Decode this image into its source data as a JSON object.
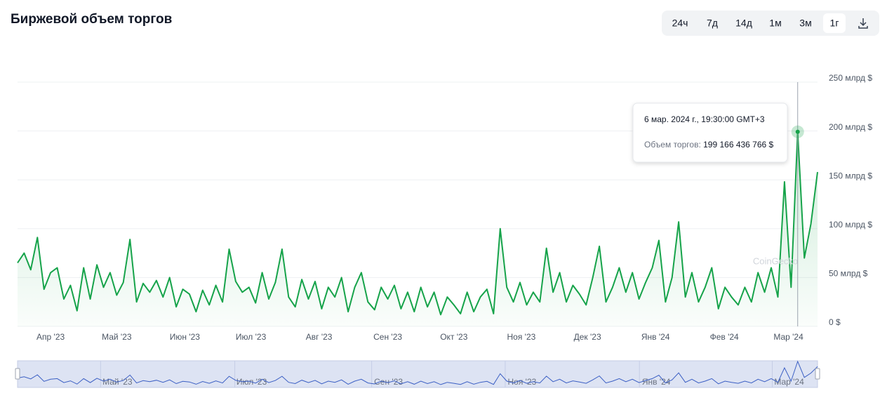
{
  "title": "Биржевой объем торгов",
  "range_buttons": [
    "24ч",
    "7д",
    "14д",
    "1м",
    "3м",
    "1г"
  ],
  "active_range": 5,
  "watermark": "CoinGecko",
  "chart_data": {
    "type": "line",
    "color": "#16a34a",
    "grid": true,
    "values": [
      65,
      75,
      58,
      91,
      38,
      55,
      60,
      28,
      42,
      16,
      60,
      28,
      63,
      40,
      55,
      32,
      45,
      89,
      25,
      44,
      35,
      47,
      30,
      50,
      20,
      38,
      33,
      15,
      37,
      22,
      42,
      25,
      79,
      46,
      35,
      40,
      24,
      55,
      28,
      45,
      79,
      30,
      20,
      48,
      28,
      46,
      18,
      40,
      30,
      50,
      15,
      40,
      55,
      25,
      17,
      40,
      28,
      42,
      18,
      35,
      15,
      40,
      20,
      35,
      12,
      30,
      22,
      13,
      35,
      15,
      30,
      38,
      13,
      100,
      40,
      25,
      45,
      22,
      35,
      25,
      80,
      35,
      55,
      25,
      42,
      33,
      22,
      50,
      82,
      25,
      40,
      60,
      35,
      55,
      28,
      45,
      60,
      88,
      25,
      50,
      107,
      30,
      55,
      25,
      40,
      60,
      18,
      40,
      30,
      22,
      40,
      25,
      55,
      35,
      60,
      30,
      148,
      40,
      199.17,
      70,
      105,
      158
    ],
    "xlim": [
      0,
      121
    ],
    "xticks": [
      {
        "value": 5.0,
        "label": "Апр '23"
      },
      {
        "value": 15.0,
        "label": "Май '23"
      },
      {
        "value": 25.3,
        "label": "Июн '23"
      },
      {
        "value": 35.3,
        "label": "Июл '23"
      },
      {
        "value": 45.6,
        "label": "Авг '23"
      },
      {
        "value": 56.0,
        "label": "Сен '23"
      },
      {
        "value": 66.0,
        "label": "Окт '23"
      },
      {
        "value": 76.2,
        "label": "Ноя '23"
      },
      {
        "value": 86.2,
        "label": "Дек '23"
      },
      {
        "value": 96.5,
        "label": "Янв '24"
      },
      {
        "value": 106.9,
        "label": "Фев '24"
      },
      {
        "value": 116.6,
        "label": "Мар '24"
      }
    ],
    "ylim": [
      0,
      250
    ],
    "yticks": [
      {
        "value": 0,
        "label": "0 $"
      },
      {
        "value": 50,
        "label": "50 млрд $"
      },
      {
        "value": 100,
        "label": "100 млрд $"
      },
      {
        "value": 150,
        "label": "150 млрд $"
      },
      {
        "value": 200,
        "label": "200 млрд $"
      },
      {
        "value": 250,
        "label": "250 млрд $"
      }
    ],
    "tooltip": {
      "index": 118,
      "date": "6 мар. 2024 г., 19:30:00 GMT+3",
      "label": "Объем торгов:",
      "value": "199 166 436 766 $"
    }
  }
}
